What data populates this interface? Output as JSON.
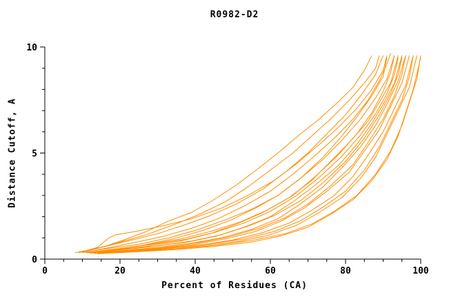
{
  "page": {
    "background": "#ffffff"
  },
  "chart_data": {
    "type": "line",
    "title": "R0982-D2",
    "xlabel": "Percent of Residues (CA)",
    "ylabel": "Distance Cutoff, A",
    "xlim": [
      0,
      100
    ],
    "ylim": [
      0,
      10
    ],
    "x_major_ticks": [
      0,
      20,
      40,
      60,
      80,
      100
    ],
    "x_minor_step": 5,
    "y_major_ticks": [
      0,
      5,
      10
    ],
    "y_minor_step": 1,
    "grid": false,
    "legend": "none",
    "line_color": "#ff8c00",
    "axis_color": "#000000",
    "series": [
      [
        [
          8,
          0.3
        ],
        [
          11,
          0.4
        ],
        [
          16,
          0.6
        ],
        [
          21,
          0.9
        ],
        [
          27,
          1.3
        ],
        [
          33,
          1.8
        ],
        [
          39,
          2.2
        ],
        [
          45,
          2.8
        ],
        [
          51,
          3.5
        ],
        [
          57,
          4.3
        ],
        [
          62,
          5.0
        ],
        [
          68,
          5.9
        ],
        [
          73,
          6.6
        ],
        [
          78,
          7.4
        ],
        [
          82,
          8.1
        ],
        [
          85,
          8.9
        ],
        [
          87,
          9.6
        ]
      ],
      [
        [
          9,
          0.3
        ],
        [
          14,
          0.5
        ],
        [
          20,
          0.8
        ],
        [
          27,
          1.15
        ],
        [
          34,
          1.6
        ],
        [
          41,
          2.1
        ],
        [
          48,
          2.7
        ],
        [
          54,
          3.4
        ],
        [
          60,
          4.2
        ],
        [
          66,
          5.0
        ],
        [
          71,
          5.8
        ],
        [
          76,
          6.6
        ],
        [
          81,
          7.5
        ],
        [
          85,
          8.3
        ],
        [
          88,
          9.0
        ],
        [
          89,
          9.6
        ]
      ],
      [
        [
          10,
          0.35
        ],
        [
          14,
          0.55
        ],
        [
          17,
          1.0
        ],
        [
          19,
          1.15
        ],
        [
          24,
          1.3
        ],
        [
          31,
          1.55
        ],
        [
          39,
          1.9
        ],
        [
          47,
          2.4
        ],
        [
          54,
          3.0
        ],
        [
          61,
          3.7
        ],
        [
          67,
          4.5
        ],
        [
          73,
          5.4
        ],
        [
          78,
          6.2
        ],
        [
          83,
          7.1
        ],
        [
          87,
          8.0
        ],
        [
          90,
          8.9
        ],
        [
          91,
          9.6
        ]
      ],
      [
        [
          10,
          0.3
        ],
        [
          16,
          0.5
        ],
        [
          23,
          0.75
        ],
        [
          31,
          1.05
        ],
        [
          39,
          1.45
        ],
        [
          46,
          1.9
        ],
        [
          53,
          2.5
        ],
        [
          60,
          3.2
        ],
        [
          66,
          4.0
        ],
        [
          72,
          4.9
        ],
        [
          77,
          5.7
        ],
        [
          82,
          6.6
        ],
        [
          86,
          7.5
        ],
        [
          89,
          8.4
        ],
        [
          91,
          9.2
        ],
        [
          92,
          9.7
        ]
      ],
      [
        [
          11,
          0.3
        ],
        [
          18,
          0.45
        ],
        [
          26,
          0.65
        ],
        [
          34,
          0.95
        ],
        [
          42,
          1.35
        ],
        [
          49,
          1.8
        ],
        [
          56,
          2.4
        ],
        [
          62,
          3.0
        ],
        [
          68,
          3.8
        ],
        [
          74,
          4.7
        ],
        [
          79,
          5.6
        ],
        [
          84,
          6.6
        ],
        [
          88,
          7.6
        ],
        [
          91,
          8.5
        ],
        [
          93,
          9.6
        ]
      ],
      [
        [
          11,
          0.3
        ],
        [
          19,
          0.45
        ],
        [
          27,
          0.6
        ],
        [
          36,
          0.85
        ],
        [
          44,
          1.2
        ],
        [
          51,
          1.65
        ],
        [
          58,
          2.2
        ],
        [
          65,
          2.9
        ],
        [
          71,
          3.7
        ],
        [
          76,
          4.6
        ],
        [
          81,
          5.5
        ],
        [
          86,
          6.5
        ],
        [
          89,
          7.4
        ],
        [
          92,
          8.3
        ],
        [
          94,
          9.6
        ]
      ],
      [
        [
          12,
          0.3
        ],
        [
          20,
          0.45
        ],
        [
          29,
          0.6
        ],
        [
          38,
          0.8
        ],
        [
          46,
          1.1
        ],
        [
          53,
          1.5
        ],
        [
          60,
          2.0
        ],
        [
          66,
          2.7
        ],
        [
          72,
          3.5
        ],
        [
          78,
          4.4
        ],
        [
          83,
          5.4
        ],
        [
          87,
          6.4
        ],
        [
          90,
          7.3
        ],
        [
          93,
          8.3
        ],
        [
          95,
          9.6
        ]
      ],
      [
        [
          12,
          0.28
        ],
        [
          21,
          0.4
        ],
        [
          30,
          0.55
        ],
        [
          39,
          0.75
        ],
        [
          47,
          1.0
        ],
        [
          55,
          1.4
        ],
        [
          62,
          1.9
        ],
        [
          68,
          2.6
        ],
        [
          74,
          3.4
        ],
        [
          79,
          4.3
        ],
        [
          84,
          5.3
        ],
        [
          88,
          6.3
        ],
        [
          91,
          7.3
        ],
        [
          94,
          8.4
        ],
        [
          96,
          9.6
        ]
      ],
      [
        [
          13,
          0.28
        ],
        [
          22,
          0.4
        ],
        [
          31,
          0.52
        ],
        [
          40,
          0.7
        ],
        [
          48,
          0.95
        ],
        [
          56,
          1.3
        ],
        [
          63,
          1.8
        ],
        [
          69,
          2.4
        ],
        [
          75,
          3.2
        ],
        [
          81,
          4.1
        ],
        [
          85,
          5.1
        ],
        [
          89,
          6.1
        ],
        [
          92,
          7.2
        ],
        [
          95,
          8.3
        ],
        [
          97,
          9.6
        ]
      ],
      [
        [
          13,
          0.27
        ],
        [
          23,
          0.38
        ],
        [
          33,
          0.5
        ],
        [
          42,
          0.68
        ],
        [
          50,
          0.9
        ],
        [
          58,
          1.25
        ],
        [
          65,
          1.7
        ],
        [
          71,
          2.3
        ],
        [
          77,
          3.0
        ],
        [
          82,
          3.9
        ],
        [
          86,
          4.9
        ],
        [
          90,
          6.0
        ],
        [
          93,
          7.1
        ],
        [
          96,
          8.2
        ],
        [
          98,
          9.6
        ]
      ],
      [
        [
          14,
          0.27
        ],
        [
          24,
          0.38
        ],
        [
          34,
          0.48
        ],
        [
          43,
          0.65
        ],
        [
          52,
          0.85
        ],
        [
          60,
          1.15
        ],
        [
          67,
          1.6
        ],
        [
          73,
          2.2
        ],
        [
          79,
          2.9
        ],
        [
          84,
          3.8
        ],
        [
          88,
          4.8
        ],
        [
          91,
          5.9
        ],
        [
          94,
          7.0
        ],
        [
          97,
          8.1
        ],
        [
          99,
          9.6
        ]
      ],
      [
        [
          14,
          0.25
        ],
        [
          25,
          0.35
        ],
        [
          35,
          0.45
        ],
        [
          45,
          0.6
        ],
        [
          55,
          0.8
        ],
        [
          63,
          1.1
        ],
        [
          70,
          1.5
        ],
        [
          76,
          2.1
        ],
        [
          82,
          2.8
        ],
        [
          87,
          3.7
        ],
        [
          91,
          4.7
        ],
        [
          94,
          5.8
        ],
        [
          96,
          6.9
        ],
        [
          98,
          8.0
        ],
        [
          100,
          9.5
        ]
      ],
      [
        [
          10,
          0.32
        ],
        [
          17,
          0.5
        ],
        [
          25,
          0.7
        ],
        [
          33,
          1.0
        ],
        [
          41,
          1.4
        ],
        [
          48,
          1.85
        ],
        [
          55,
          2.35
        ],
        [
          62,
          3.0
        ],
        [
          68,
          3.8
        ],
        [
          74,
          4.8
        ],
        [
          79,
          5.8
        ],
        [
          83,
          6.7
        ],
        [
          87,
          7.7
        ],
        [
          90,
          8.6
        ],
        [
          91,
          9.5
        ]
      ],
      [
        [
          12,
          0.3
        ],
        [
          20,
          0.5
        ],
        [
          28,
          0.7
        ],
        [
          36,
          0.95
        ],
        [
          44,
          1.3
        ],
        [
          52,
          1.75
        ],
        [
          59,
          2.3
        ],
        [
          66,
          3.0
        ],
        [
          72,
          3.9
        ],
        [
          78,
          4.9
        ],
        [
          83,
          5.9
        ],
        [
          87,
          6.9
        ],
        [
          90,
          7.9
        ],
        [
          92,
          8.8
        ],
        [
          93,
          9.6
        ]
      ],
      [
        [
          13,
          0.3
        ],
        [
          21,
          0.45
        ],
        [
          30,
          0.62
        ],
        [
          39,
          0.85
        ],
        [
          47,
          1.15
        ],
        [
          54,
          1.55
        ],
        [
          61,
          2.05
        ],
        [
          68,
          2.75
        ],
        [
          74,
          3.6
        ],
        [
          80,
          4.6
        ],
        [
          85,
          5.7
        ],
        [
          89,
          6.8
        ],
        [
          92,
          7.8
        ],
        [
          94,
          8.7
        ],
        [
          95,
          9.5
        ]
      ],
      [
        [
          11,
          0.3
        ],
        [
          19,
          0.48
        ],
        [
          28,
          0.68
        ],
        [
          37,
          0.92
        ],
        [
          45,
          1.25
        ],
        [
          53,
          1.7
        ],
        [
          60,
          2.25
        ],
        [
          67,
          3.0
        ],
        [
          73,
          3.85
        ],
        [
          79,
          4.85
        ],
        [
          84,
          5.85
        ],
        [
          88,
          6.85
        ],
        [
          91,
          7.8
        ],
        [
          93,
          8.7
        ],
        [
          94,
          9.5
        ]
      ],
      [
        [
          13,
          0.29
        ],
        [
          22,
          0.42
        ],
        [
          32,
          0.58
        ],
        [
          41,
          0.78
        ],
        [
          49,
          1.05
        ],
        [
          57,
          1.45
        ],
        [
          64,
          1.95
        ],
        [
          70,
          2.6
        ],
        [
          76,
          3.45
        ],
        [
          82,
          4.45
        ],
        [
          86,
          5.5
        ],
        [
          90,
          6.6
        ],
        [
          93,
          7.7
        ],
        [
          95,
          8.7
        ],
        [
          96,
          9.6
        ]
      ],
      [
        [
          14,
          0.27
        ],
        [
          24,
          0.4
        ],
        [
          34,
          0.55
        ],
        [
          44,
          0.72
        ],
        [
          53,
          0.95
        ],
        [
          61,
          1.3
        ],
        [
          68,
          1.8
        ],
        [
          74,
          2.45
        ],
        [
          80,
          3.2
        ],
        [
          85,
          4.2
        ],
        [
          89,
          5.3
        ],
        [
          92,
          6.4
        ],
        [
          95,
          7.5
        ],
        [
          97,
          8.6
        ],
        [
          98,
          9.6
        ]
      ],
      [
        [
          15,
          0.27
        ],
        [
          26,
          0.38
        ],
        [
          36,
          0.5
        ],
        [
          46,
          0.66
        ],
        [
          55,
          0.88
        ],
        [
          64,
          1.2
        ],
        [
          71,
          1.65
        ],
        [
          77,
          2.25
        ],
        [
          83,
          3.0
        ],
        [
          88,
          4.0
        ],
        [
          92,
          5.1
        ],
        [
          95,
          6.3
        ],
        [
          97,
          7.4
        ],
        [
          99,
          8.5
        ],
        [
          100,
          9.6
        ]
      ],
      [
        [
          9,
          0.32
        ],
        [
          15,
          0.55
        ],
        [
          22,
          0.85
        ],
        [
          30,
          1.2
        ],
        [
          37,
          1.6
        ],
        [
          44,
          2.05
        ],
        [
          51,
          2.6
        ],
        [
          58,
          3.3
        ],
        [
          64,
          4.1
        ],
        [
          70,
          5.0
        ],
        [
          75,
          5.9
        ],
        [
          80,
          6.8
        ],
        [
          84,
          7.7
        ],
        [
          88,
          8.7
        ],
        [
          90,
          9.6
        ]
      ]
    ]
  }
}
